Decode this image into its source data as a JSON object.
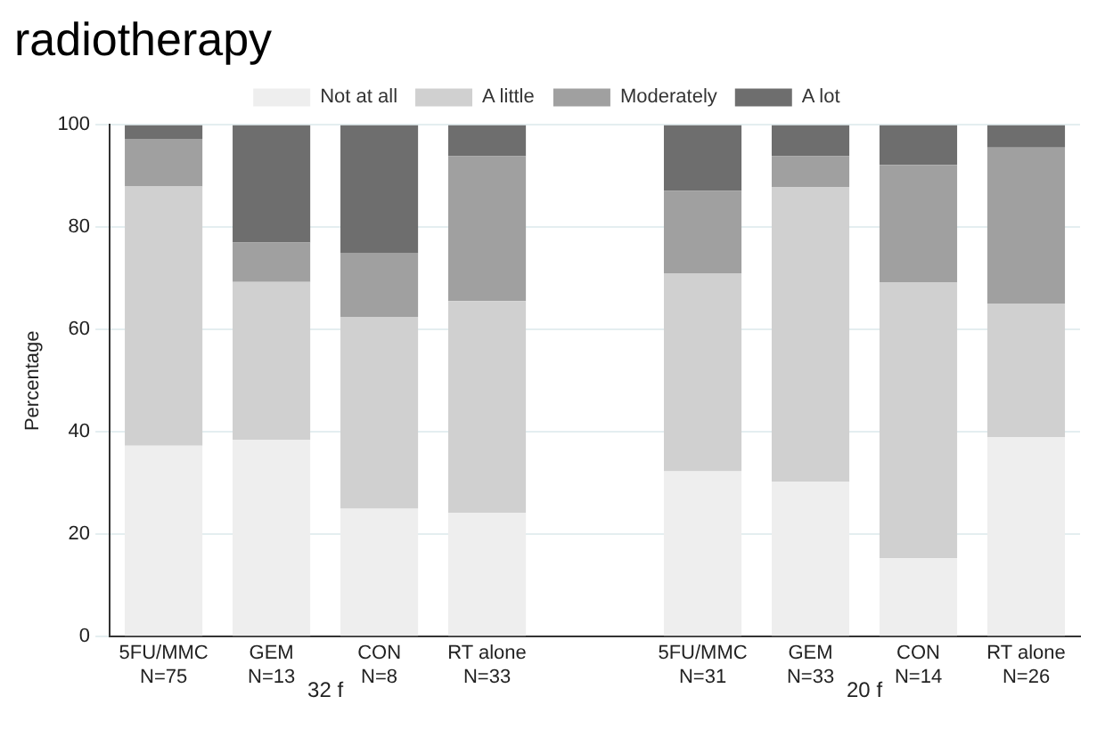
{
  "chart_data": {
    "type": "bar",
    "stacked": true,
    "title": "radiotherapy",
    "ylabel": "Percentage",
    "categories": [
      "5FU/MMC\nN=75",
      "GEM\nN=13",
      "CON\nN=8",
      "RT alone\nN=33",
      null,
      "5FU/MMC\nN=31",
      "GEM\nN=33",
      "CON\nN=14",
      "RT alone\nN=26"
    ],
    "series": [
      {
        "name": "Not at all",
        "color": "#eeeeee",
        "values": [
          37.3,
          38.5,
          25,
          24.2,
          null,
          32.3,
          30.3,
          15.3,
          39.0
        ]
      },
      {
        "name": "A little",
        "color": "#d0d0d0",
        "values": [
          50.7,
          30.8,
          37.5,
          41.4,
          null,
          38.7,
          57.6,
          53.9,
          26.0
        ]
      },
      {
        "name": "Moderately",
        "color": "#a0a0a0",
        "values": [
          9.3,
          7.7,
          12.5,
          28.3,
          null,
          16.1,
          6.0,
          23.0,
          30.6
        ]
      },
      {
        "name": "A lot",
        "color": "#6e6e6e",
        "values": [
          2.7,
          23.0,
          25,
          6.1,
          null,
          12.9,
          6.1,
          7.8,
          4.4
        ]
      }
    ],
    "ylim": [
      0,
      100
    ],
    "yticks": [
      0,
      20,
      40,
      60,
      80,
      100
    ],
    "grid": "y",
    "legend": "top",
    "annotations": [
      "32 f",
      "20 f"
    ]
  }
}
